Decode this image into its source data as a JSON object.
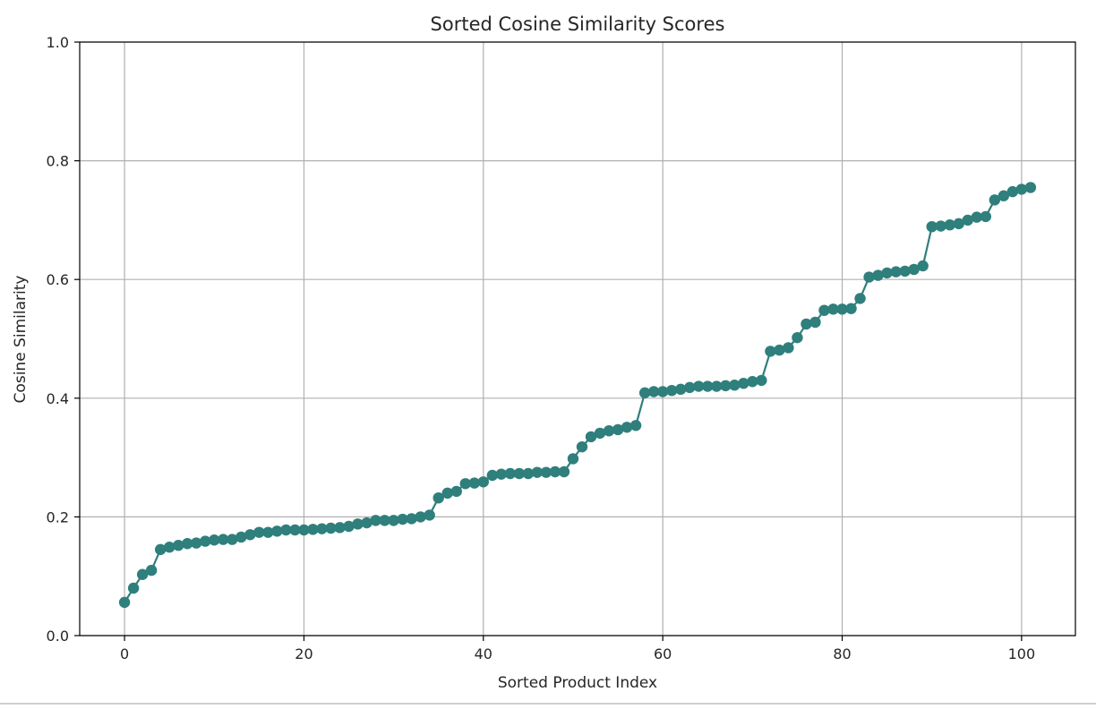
{
  "chart_data": {
    "type": "line",
    "title": "Sorted Cosine Similarity Scores",
    "xlabel": "Sorted Product Index",
    "ylabel": "Cosine Similarity",
    "xlim": [
      -5,
      106
    ],
    "ylim": [
      0.0,
      1.0
    ],
    "x_ticks": [
      0,
      20,
      40,
      60,
      80,
      100
    ],
    "x_tick_labels": [
      "0",
      "20",
      "40",
      "60",
      "80",
      "100"
    ],
    "y_ticks": [
      0.0,
      0.2,
      0.4,
      0.6,
      0.8,
      1.0
    ],
    "y_tick_labels": [
      "0.0",
      "0.2",
      "0.4",
      "0.6",
      "0.8",
      "1.0"
    ],
    "grid": true,
    "legend": "none",
    "marker": "circle",
    "line_color": "#2f7f7c",
    "marker_color": "#2f7f7c",
    "series": [
      {
        "x": [
          0,
          1,
          2,
          3,
          4,
          5,
          6,
          7,
          8,
          9,
          10,
          11,
          12,
          13,
          14,
          15,
          16,
          17,
          18,
          19,
          20,
          21,
          22,
          23,
          24,
          25,
          26,
          27,
          28,
          29,
          30,
          31,
          32,
          33,
          34,
          35,
          36,
          37,
          38,
          39,
          40,
          41,
          42,
          43,
          44,
          45,
          46,
          47,
          48,
          49,
          50,
          51,
          52,
          53,
          54,
          55,
          56,
          57,
          58,
          59,
          60,
          61,
          62,
          63,
          64,
          65,
          66,
          67,
          68,
          69,
          70,
          71,
          72,
          73,
          74,
          75,
          76,
          77,
          78,
          79,
          80,
          81,
          82,
          83,
          84,
          85,
          86,
          87,
          88,
          89,
          90,
          91,
          92,
          93,
          94,
          95,
          96,
          97,
          98,
          99,
          100,
          101
        ],
        "values": [
          0.056,
          0.08,
          0.103,
          0.11,
          0.145,
          0.149,
          0.152,
          0.155,
          0.156,
          0.159,
          0.161,
          0.162,
          0.162,
          0.166,
          0.17,
          0.174,
          0.174,
          0.176,
          0.178,
          0.178,
          0.178,
          0.179,
          0.18,
          0.181,
          0.182,
          0.184,
          0.188,
          0.19,
          0.194,
          0.194,
          0.194,
          0.196,
          0.197,
          0.2,
          0.203,
          0.232,
          0.24,
          0.243,
          0.256,
          0.257,
          0.259,
          0.27,
          0.272,
          0.273,
          0.273,
          0.273,
          0.275,
          0.275,
          0.276,
          0.276,
          0.298,
          0.318,
          0.335,
          0.341,
          0.345,
          0.347,
          0.351,
          0.354,
          0.409,
          0.411,
          0.411,
          0.413,
          0.415,
          0.418,
          0.42,
          0.42,
          0.42,
          0.421,
          0.422,
          0.425,
          0.428,
          0.43,
          0.479,
          0.481,
          0.485,
          0.502,
          0.525,
          0.528,
          0.548,
          0.55,
          0.55,
          0.551,
          0.568,
          0.604,
          0.607,
          0.611,
          0.613,
          0.614,
          0.617,
          0.623,
          0.689,
          0.69,
          0.692,
          0.694,
          0.7,
          0.705,
          0.706,
          0.734,
          0.741,
          0.748,
          0.752,
          0.755
        ]
      }
    ]
  }
}
